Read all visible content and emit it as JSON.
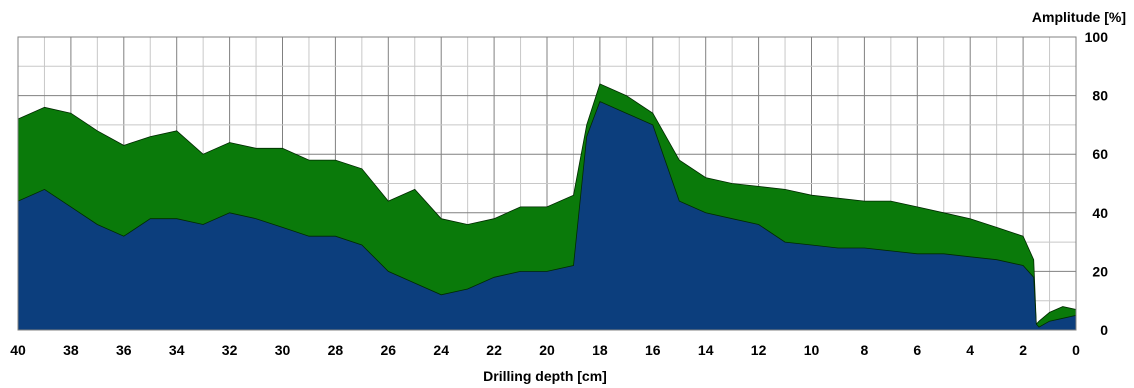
{
  "chart_data": {
    "type": "area",
    "title": "",
    "xlabel": "Drilling depth [cm]",
    "ylabel": "Amplitude [%]",
    "xlim": [
      40,
      0
    ],
    "x_reversed": true,
    "ylim": [
      0,
      100
    ],
    "y_axis_side": "right",
    "grid": true,
    "legend": "none",
    "x_ticks": [
      40,
      38,
      36,
      34,
      32,
      30,
      28,
      26,
      24,
      22,
      20,
      18,
      16,
      14,
      12,
      10,
      8,
      6,
      4,
      2,
      0
    ],
    "y_ticks": [
      0,
      20,
      40,
      60,
      80,
      100
    ],
    "x": [
      40,
      39,
      38,
      37,
      36,
      35,
      34,
      33,
      32,
      31,
      30,
      29,
      28,
      27,
      26,
      25,
      24,
      23,
      22,
      21,
      20,
      19,
      18.5,
      18,
      17,
      16,
      15,
      14,
      13,
      12,
      11,
      10,
      9,
      8,
      7,
      6,
      5,
      4,
      3,
      2,
      1.6,
      1.5,
      1.4,
      1,
      0.5,
      0
    ],
    "series": [
      {
        "color": "#0a7a0a",
        "values": [
          72,
          76,
          74,
          68,
          63,
          66,
          68,
          60,
          64,
          62,
          62,
          58,
          58,
          55,
          44,
          48,
          38,
          36,
          38,
          42,
          42,
          46,
          70,
          84,
          80,
          74,
          58,
          52,
          50,
          49,
          48,
          46,
          45,
          44,
          44,
          42,
          40,
          38,
          35,
          32,
          24,
          2,
          3,
          6,
          8,
          7
        ]
      },
      {
        "color": "#0c3e7d",
        "values": [
          44,
          48,
          42,
          36,
          32,
          38,
          38,
          36,
          40,
          38,
          35,
          32,
          32,
          29,
          20,
          16,
          12,
          14,
          18,
          20,
          20,
          22,
          66,
          78,
          74,
          70,
          44,
          40,
          38,
          36,
          30,
          29,
          28,
          28,
          27,
          26,
          26,
          25,
          24,
          22,
          18,
          2,
          1,
          3,
          4,
          5
        ]
      }
    ]
  }
}
